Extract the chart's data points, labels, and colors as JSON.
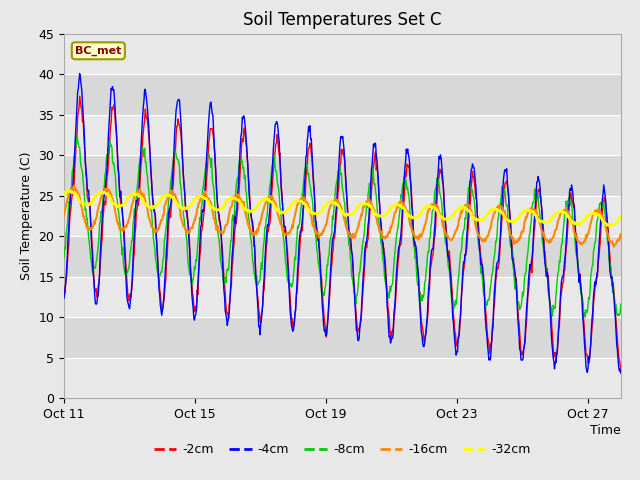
{
  "title": "Soil Temperatures Set C",
  "xlabel": "Time",
  "ylabel": "Soil Temperature (C)",
  "ylim": [
    0,
    45
  ],
  "x_tick_labels": [
    "Oct 11",
    "Oct 15",
    "Oct 19",
    "Oct 23",
    "Oct 27"
  ],
  "x_tick_positions": [
    0,
    4,
    8,
    12,
    16
  ],
  "legend_labels": [
    "-2cm",
    "-4cm",
    "-8cm",
    "-16cm",
    "-32cm"
  ],
  "legend_colors": [
    "#ff0000",
    "#0000ff",
    "#00cc00",
    "#ff8800",
    "#ffff00"
  ],
  "annotation_text": "BC_met",
  "bg_color": "#e8e8e8",
  "plot_bg_color": "#ffffff",
  "band_colors": [
    "#e8e8e8",
    "#d8d8d8"
  ],
  "title_fontsize": 12,
  "axis_label_fontsize": 9,
  "tick_fontsize": 9
}
